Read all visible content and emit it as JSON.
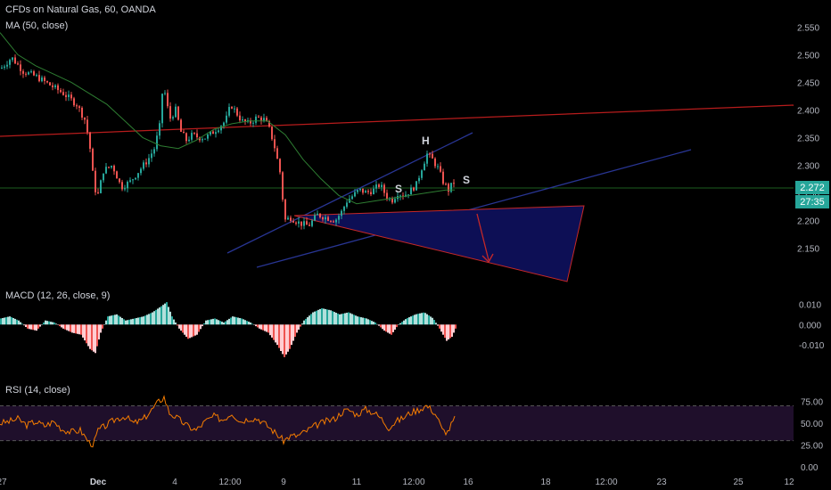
{
  "header": {
    "title": "CFDs on Natural Gas, 60, OANDA",
    "ma_label": "MA (50, close)",
    "macd_label": "MACD (12, 26, close, 9)",
    "rsi_label": "RSI (14, close)"
  },
  "chart_data": [
    {
      "type": "candlestick",
      "instrument": "CFDs on Natural Gas",
      "timeframe": "60",
      "source": "OANDA",
      "overlay": "MA (50, close)",
      "y_ticks": [
        "2.550",
        "2.500",
        "2.450",
        "2.400",
        "2.350",
        "2.300",
        "2.250",
        "2.200",
        "2.150"
      ],
      "ylim": [
        2.115,
        2.57
      ],
      "x_ticks": [
        "27",
        "Dec",
        "4",
        "12:00",
        "9",
        "11",
        "12:00",
        "16",
        "18",
        "12:00",
        "23",
        "25",
        "12"
      ],
      "last_price": "2.272",
      "countdown": "27:35",
      "pattern_labels": [
        "H",
        "S",
        "S"
      ],
      "close_path": [
        [
          0,
          2.475
        ],
        [
          12,
          2.495
        ],
        [
          25,
          2.47
        ],
        [
          40,
          2.46
        ],
        [
          55,
          2.445
        ],
        [
          70,
          2.43
        ],
        [
          85,
          2.41
        ],
        [
          95,
          2.38
        ],
        [
          100,
          2.33
        ],
        [
          104,
          2.27
        ],
        [
          108,
          2.24
        ],
        [
          115,
          2.29
        ],
        [
          125,
          2.3
        ],
        [
          135,
          2.26
        ],
        [
          145,
          2.27
        ],
        [
          155,
          2.29
        ],
        [
          165,
          2.31
        ],
        [
          172,
          2.33
        ],
        [
          178,
          2.37
        ],
        [
          182,
          2.45
        ],
        [
          186,
          2.41
        ],
        [
          190,
          2.385
        ],
        [
          196,
          2.4
        ],
        [
          202,
          2.36
        ],
        [
          208,
          2.345
        ],
        [
          215,
          2.355
        ],
        [
          222,
          2.35
        ],
        [
          230,
          2.35
        ],
        [
          238,
          2.36
        ],
        [
          245,
          2.37
        ],
        [
          252,
          2.38
        ],
        [
          258,
          2.41
        ],
        [
          264,
          2.395
        ],
        [
          270,
          2.38
        ],
        [
          278,
          2.375
        ],
        [
          286,
          2.385
        ],
        [
          294,
          2.385
        ],
        [
          300,
          2.37
        ],
        [
          306,
          2.34
        ],
        [
          310,
          2.31
        ],
        [
          314,
          2.28
        ],
        [
          318,
          2.2
        ],
        [
          325,
          2.205
        ],
        [
          335,
          2.195
        ],
        [
          345,
          2.19
        ],
        [
          355,
          2.21
        ],
        [
          365,
          2.205
        ],
        [
          375,
          2.2
        ],
        [
          382,
          2.215
        ],
        [
          388,
          2.235
        ],
        [
          395,
          2.245
        ],
        [
          402,
          2.255
        ],
        [
          410,
          2.25
        ],
        [
          418,
          2.255
        ],
        [
          425,
          2.265
        ],
        [
          432,
          2.245
        ],
        [
          438,
          2.235
        ],
        [
          445,
          2.25
        ],
        [
          452,
          2.245
        ],
        [
          460,
          2.255
        ],
        [
          466,
          2.265
        ],
        [
          472,
          2.295
        ],
        [
          478,
          2.32
        ],
        [
          484,
          2.31
        ],
        [
          490,
          2.295
        ],
        [
          496,
          2.27
        ],
        [
          502,
          2.255
        ],
        [
          506,
          2.265
        ],
        [
          510,
          2.275
        ]
      ],
      "ma_path": [
        [
          0,
          2.54
        ],
        [
          20,
          2.5
        ],
        [
          40,
          2.48
        ],
        [
          60,
          2.465
        ],
        [
          80,
          2.45
        ],
        [
          100,
          2.43
        ],
        [
          120,
          2.41
        ],
        [
          140,
          2.38
        ],
        [
          160,
          2.35
        ],
        [
          180,
          2.335
        ],
        [
          200,
          2.33
        ],
        [
          220,
          2.345
        ],
        [
          240,
          2.365
        ],
        [
          260,
          2.375
        ],
        [
          280,
          2.38
        ],
        [
          300,
          2.38
        ],
        [
          320,
          2.355
        ],
        [
          340,
          2.31
        ],
        [
          360,
          2.275
        ],
        [
          380,
          2.245
        ],
        [
          400,
          2.23
        ],
        [
          420,
          2.235
        ],
        [
          440,
          2.24
        ],
        [
          460,
          2.245
        ],
        [
          480,
          2.25
        ],
        [
          500,
          2.255
        ],
        [
          510,
          2.255
        ]
      ],
      "macd_hist": [
        [
          0,
          0.003
        ],
        [
          10,
          0.004
        ],
        [
          20,
          0.002
        ],
        [
          30,
          -0.002
        ],
        [
          40,
          -0.003
        ],
        [
          50,
          0.002
        ],
        [
          60,
          0.001
        ],
        [
          70,
          -0.002
        ],
        [
          80,
          -0.004
        ],
        [
          90,
          -0.005
        ],
        [
          100,
          -0.012
        ],
        [
          106,
          -0.014
        ],
        [
          112,
          -0.004
        ],
        [
          120,
          0.004
        ],
        [
          130,
          0.005
        ],
        [
          140,
          0.002
        ],
        [
          150,
          0.003
        ],
        [
          160,
          0.004
        ],
        [
          170,
          0.006
        ],
        [
          180,
          0.009
        ],
        [
          186,
          0.011
        ],
        [
          192,
          0.004
        ],
        [
          200,
          -0.002
        ],
        [
          210,
          -0.007
        ],
        [
          220,
          -0.005
        ],
        [
          230,
          0.002
        ],
        [
          240,
          0.003
        ],
        [
          250,
          0.001
        ],
        [
          260,
          0.004
        ],
        [
          270,
          0.003
        ],
        [
          280,
          0.001
        ],
        [
          290,
          -0.002
        ],
        [
          300,
          -0.004
        ],
        [
          310,
          -0.01
        ],
        [
          318,
          -0.016
        ],
        [
          324,
          -0.012
        ],
        [
          332,
          -0.004
        ],
        [
          340,
          0.002
        ],
        [
          350,
          0.006
        ],
        [
          360,
          0.008
        ],
        [
          370,
          0.007
        ],
        [
          380,
          0.005
        ],
        [
          390,
          0.006
        ],
        [
          400,
          0.004
        ],
        [
          410,
          0.003
        ],
        [
          420,
          0.001
        ],
        [
          430,
          -0.003
        ],
        [
          438,
          -0.005
        ],
        [
          446,
          0.0
        ],
        [
          455,
          0.003
        ],
        [
          465,
          0.005
        ],
        [
          475,
          0.006
        ],
        [
          485,
          0.003
        ],
        [
          492,
          -0.002
        ],
        [
          500,
          -0.008
        ],
        [
          506,
          -0.006
        ],
        [
          510,
          -0.002
        ]
      ],
      "macd_axis": {
        "ticks": [
          "0.010",
          "0.000",
          "-0.010"
        ],
        "ylim": [
          -0.02,
          0.015
        ]
      },
      "rsi_path": [
        [
          0,
          50
        ],
        [
          10,
          52
        ],
        [
          20,
          55
        ],
        [
          30,
          48
        ],
        [
          40,
          52
        ],
        [
          50,
          47
        ],
        [
          60,
          52
        ],
        [
          70,
          43
        ],
        [
          80,
          40
        ],
        [
          90,
          42
        ],
        [
          100,
          28
        ],
        [
          105,
          26
        ],
        [
          110,
          42
        ],
        [
          120,
          48
        ],
        [
          130,
          55
        ],
        [
          140,
          58
        ],
        [
          150,
          50
        ],
        [
          160,
          54
        ],
        [
          170,
          65
        ],
        [
          178,
          75
        ],
        [
          184,
          80
        ],
        [
          190,
          62
        ],
        [
          200,
          55
        ],
        [
          210,
          47
        ],
        [
          220,
          42
        ],
        [
          230,
          52
        ],
        [
          240,
          58
        ],
        [
          250,
          54
        ],
        [
          260,
          62
        ],
        [
          270,
          52
        ],
        [
          280,
          56
        ],
        [
          290,
          55
        ],
        [
          300,
          47
        ],
        [
          310,
          38
        ],
        [
          318,
          30
        ],
        [
          325,
          35
        ],
        [
          335,
          36
        ],
        [
          345,
          42
        ],
        [
          355,
          48
        ],
        [
          365,
          52
        ],
        [
          375,
          55
        ],
        [
          385,
          64
        ],
        [
          392,
          65
        ],
        [
          400,
          60
        ],
        [
          410,
          66
        ],
        [
          420,
          62
        ],
        [
          428,
          55
        ],
        [
          436,
          45
        ],
        [
          444,
          52
        ],
        [
          452,
          56
        ],
        [
          460,
          62
        ],
        [
          470,
          66
        ],
        [
          478,
          70
        ],
        [
          484,
          66
        ],
        [
          490,
          58
        ],
        [
          496,
          42
        ],
        [
          502,
          40
        ],
        [
          508,
          52
        ],
        [
          510,
          55
        ]
      ],
      "rsi_axis": {
        "ticks": [
          "75.00",
          "50.00",
          "25.00",
          "0.00"
        ],
        "ylim": [
          0,
          90
        ],
        "upper": 70,
        "lower": 30
      }
    }
  ],
  "colors": {
    "background": "#000000",
    "up": "#26a69a",
    "down": "#ef5350",
    "ma": "#2e7d32",
    "macd_up": "#b2dfdb",
    "macd_down": "#ffcdd2",
    "rsi": "#f57c00",
    "resistance": "#b71c1c",
    "channel": "#1a237e",
    "triangle_fill": "#0d0f55",
    "price_badge": "#26a69a"
  }
}
